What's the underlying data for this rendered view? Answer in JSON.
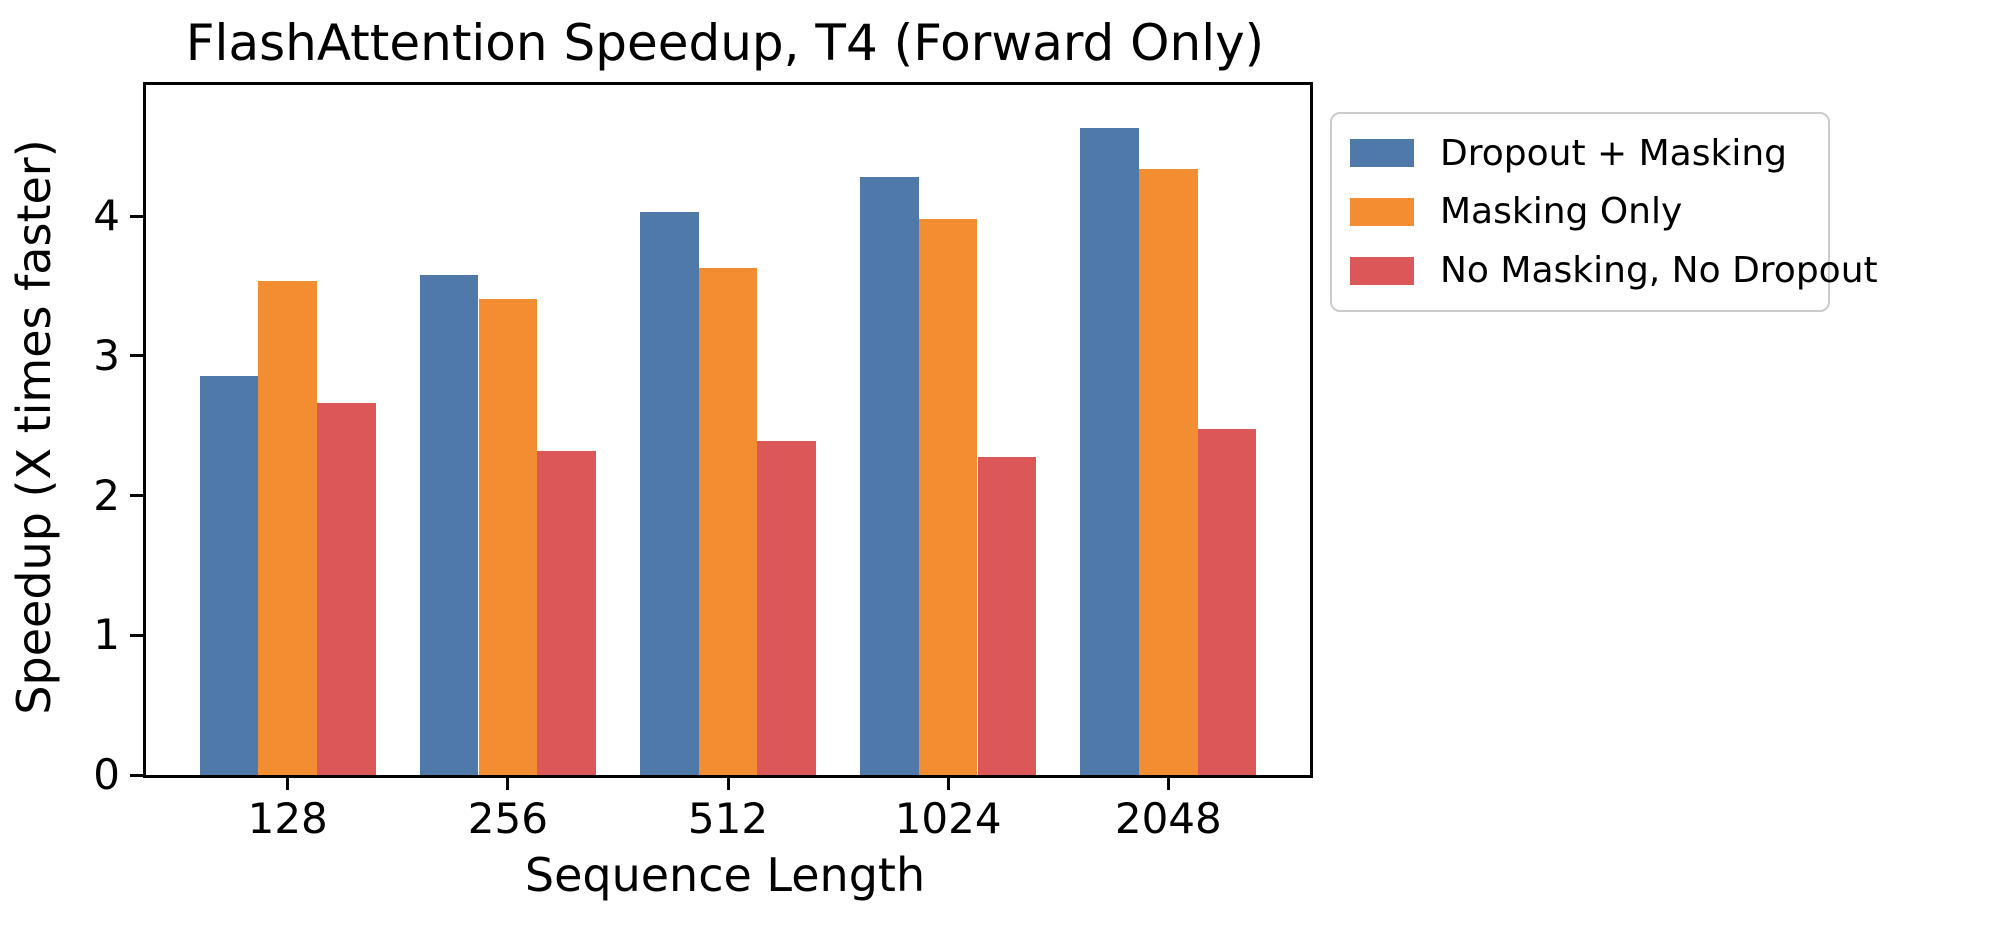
{
  "chart_data": {
    "type": "bar",
    "title": "FlashAttention Speedup, T4 (Forward Only)",
    "xlabel": "Sequence Length",
    "ylabel": "Speedup (X times faster)",
    "categories": [
      "128",
      "256",
      "512",
      "1024",
      "2048"
    ],
    "series": [
      {
        "name": "Dropout + Masking",
        "color": "#4E79A8",
        "values": [
          2.86,
          3.58,
          4.03,
          4.28,
          4.63
        ]
      },
      {
        "name": "Masking Only",
        "color": "#F28E31",
        "values": [
          3.54,
          3.41,
          3.63,
          3.98,
          4.34
        ]
      },
      {
        "name": "No Masking, No Dropout",
        "color": "#DC5757",
        "values": [
          2.66,
          2.32,
          2.39,
          2.28,
          2.48
        ]
      }
    ],
    "yticks": [
      "0",
      "1",
      "2",
      "3",
      "4"
    ],
    "ylim": [
      0,
      4.94
    ],
    "grid": false,
    "legend_position": "outside-right",
    "spine_color": "#000000",
    "legend_border_color": "#cccccc"
  }
}
